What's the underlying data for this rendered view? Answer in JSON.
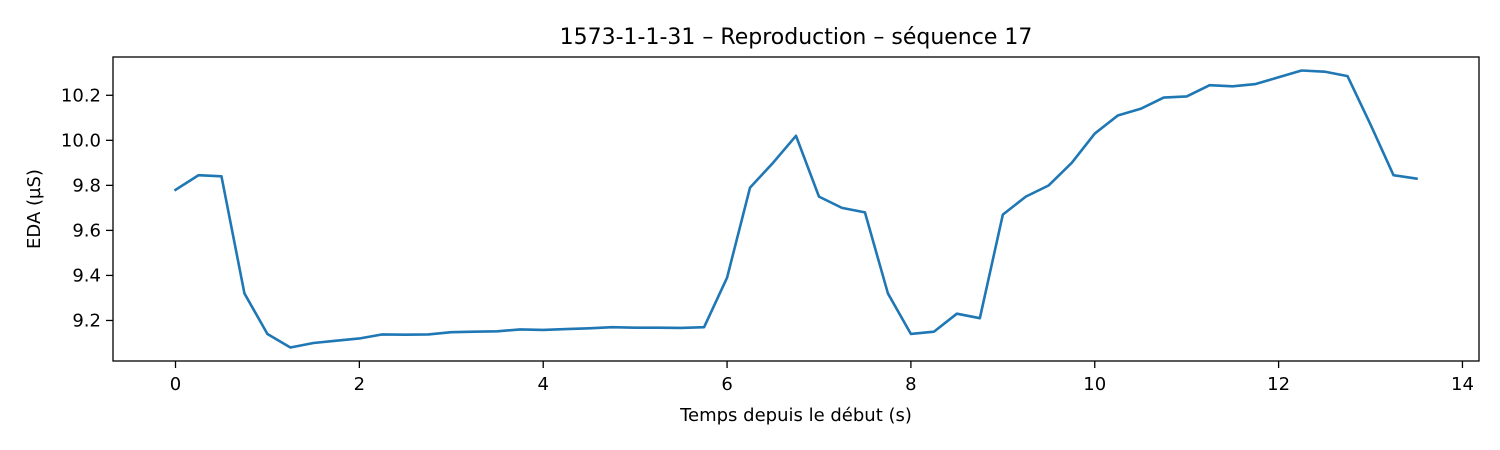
{
  "chart_data": {
    "type": "line",
    "title": "1573-1-1-31 – Reproduction – séquence 17",
    "xlabel": "Temps depuis le début (s)",
    "ylabel": "EDA (µS)",
    "xlim": [
      -0.68,
      14.18
    ],
    "ylim": [
      9.02,
      10.37
    ],
    "xticks": [
      0,
      2,
      4,
      6,
      8,
      10,
      12,
      14
    ],
    "xtick_labels": [
      "0",
      "2",
      "4",
      "6",
      "8",
      "10",
      "12",
      "14"
    ],
    "yticks": [
      9.2,
      9.4,
      9.6,
      9.8,
      10.0,
      10.2
    ],
    "ytick_labels": [
      "9.2",
      "9.4",
      "9.6",
      "9.8",
      "10.0",
      "10.2"
    ],
    "grid": false,
    "series": [
      {
        "color": "#1f77b4",
        "x": [
          0,
          0.25,
          0.5,
          0.75,
          1.0,
          1.25,
          1.5,
          1.75,
          2.0,
          2.25,
          2.5,
          2.75,
          3.0,
          3.25,
          3.5,
          3.75,
          4.0,
          4.25,
          4.5,
          4.75,
          5.0,
          5.25,
          5.5,
          5.75,
          6.0,
          6.25,
          6.5,
          6.75,
          7.0,
          7.25,
          7.5,
          7.75,
          8.0,
          8.25,
          8.5,
          8.75,
          9.0,
          9.25,
          9.5,
          9.75,
          10.0,
          10.25,
          10.5,
          10.75,
          11.0,
          11.25,
          11.5,
          11.75,
          12.0,
          12.25,
          12.5,
          12.75,
          13.0,
          13.25,
          13.5
        ],
        "y": [
          9.78,
          9.845,
          9.84,
          9.32,
          9.14,
          9.08,
          9.1,
          9.11,
          9.12,
          9.138,
          9.137,
          9.138,
          9.148,
          9.15,
          9.152,
          9.16,
          9.158,
          9.162,
          9.165,
          9.17,
          9.168,
          9.168,
          9.167,
          9.17,
          9.39,
          9.79,
          9.9,
          10.02,
          9.75,
          9.7,
          9.68,
          9.32,
          9.14,
          9.15,
          9.23,
          9.21,
          9.67,
          9.75,
          9.8,
          9.9,
          10.03,
          10.11,
          10.14,
          10.19,
          10.195,
          10.245,
          10.24,
          10.25,
          10.28,
          10.31,
          10.305,
          10.285,
          10.07,
          9.845,
          9.83
        ]
      }
    ]
  }
}
